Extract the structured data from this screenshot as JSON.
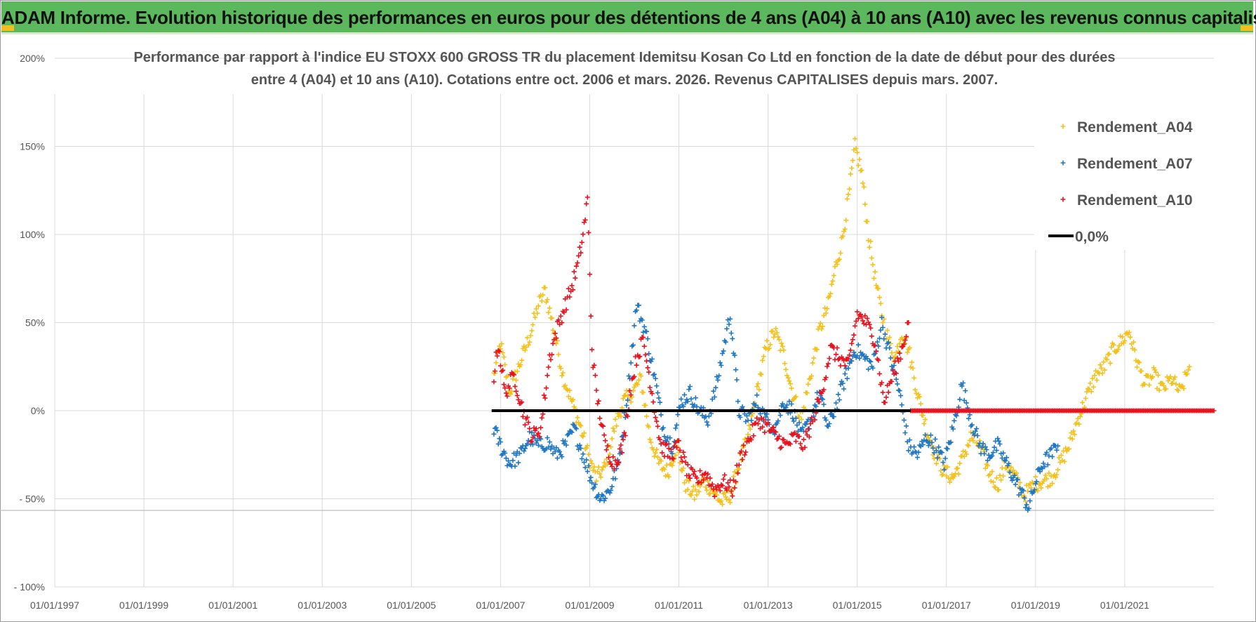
{
  "header": {
    "title": "ADAM Informe. Evolution historique des performances en euros pour des détentions de 4 ans (A04) à 10 ans (A10) avec les revenus connus capitalisés"
  },
  "colors": {
    "header_bg": "#5cb85c",
    "header_accent": "#f0c020",
    "a04": "#f5c01a",
    "a07": "#1f77c4",
    "a10": "#e8111c",
    "zero": "#000000",
    "grid": "#d9d9d9"
  },
  "chart_data": {
    "type": "scatter",
    "title_lines": [
      "Performance par rapport à l'indice EU STOXX 600 GROSS TR  du placement Idemitsu Kosan Co Ltd en fonction de la date de début pour des durées",
      "entre 4 (A04) et 10 ans (A10). Cotations entre oct. 2006 et mars. 2026. Revenus CAPITALISES depuis mars. 2007."
    ],
    "xlabel": "",
    "ylabel": "",
    "xlim": [
      1997.0,
      2023.0
    ],
    "ylim": [
      -100,
      200
    ],
    "x_ticks": [
      1997,
      1999,
      2001,
      2003,
      2005,
      2007,
      2009,
      2011,
      2013,
      2015,
      2017,
      2019,
      2021
    ],
    "x_tick_labels": [
      "01/01/1997",
      "01/01/1999",
      "01/01/2001",
      "01/01/2003",
      "01/01/2005",
      "01/01/2007",
      "01/01/2009",
      "01/01/2011",
      "01/01/2013",
      "01/01/2015",
      "01/01/2017",
      "01/01/2019",
      "01/01/2021"
    ],
    "y_ticks": [
      200,
      150,
      100,
      50,
      0,
      -50,
      -100
    ],
    "y_tick_labels": [
      "200%",
      "150%",
      "100%",
      "50%",
      "0%",
      "- 50%",
      "- 100%"
    ],
    "legend_position": "top-right",
    "legend": [
      "Rendement_A04",
      "Rendement_A07",
      "Rendement_A10",
      "0,0%"
    ],
    "zero_line": {
      "name": "0,0%",
      "x": [
        2006.8,
        2023.0
      ],
      "y": [
        0,
        0
      ]
    },
    "series": [
      {
        "name": "Rendement_A04",
        "color_key": "a04",
        "x": [
          2006.85,
          2007.0,
          2007.2,
          2007.45,
          2007.65,
          2007.85,
          2008.0,
          2008.2,
          2008.4,
          2008.6,
          2008.8,
          2009.0,
          2009.15,
          2009.35,
          2009.55,
          2009.75,
          2009.95,
          2010.15,
          2010.35,
          2010.55,
          2010.75,
          2010.95,
          2011.15,
          2011.35,
          2011.55,
          2011.75,
          2011.95,
          2012.15,
          2012.35,
          2012.55,
          2012.75,
          2012.95,
          2013.15,
          2013.35,
          2013.55,
          2013.75,
          2013.95,
          2014.15,
          2014.35,
          2014.5,
          2014.65,
          2014.8,
          2014.95,
          2015.1,
          2015.25,
          2015.4,
          2015.55,
          2015.7,
          2015.85,
          2016.0,
          2016.15,
          2016.35,
          2016.55,
          2016.75,
          2016.95,
          2017.15,
          2017.35,
          2017.55,
          2017.75,
          2017.95,
          2018.15,
          2018.35,
          2018.55,
          2018.75,
          2018.95,
          2019.15,
          2019.35,
          2019.55,
          2019.75,
          2019.95,
          2020.15,
          2020.35,
          2020.55,
          2020.75,
          2020.95,
          2021.1,
          2021.25,
          2021.45,
          2021.65,
          2021.85,
          2022.05,
          2022.25,
          2022.45
        ],
        "y": [
          20,
          38,
          10,
          28,
          42,
          60,
          68,
          45,
          20,
          5,
          -10,
          -28,
          -38,
          -32,
          -10,
          5,
          10,
          18,
          -15,
          -30,
          -35,
          -20,
          -42,
          -48,
          -40,
          -45,
          -52,
          -48,
          -30,
          -15,
          10,
          35,
          45,
          32,
          10,
          -5,
          20,
          45,
          60,
          80,
          95,
          120,
          150,
          135,
          100,
          75,
          55,
          40,
          30,
          45,
          35,
          10,
          -10,
          -25,
          -35,
          -38,
          -28,
          -15,
          -20,
          -35,
          -42,
          -30,
          -38,
          -48,
          -42,
          -40,
          -38,
          -30,
          -20,
          -5,
          8,
          20,
          25,
          35,
          40,
          45,
          30,
          15,
          20,
          12,
          18,
          10,
          25
        ]
      },
      {
        "name": "Rendement_A07",
        "color_key": "a07",
        "x": [
          2006.85,
          2007.0,
          2007.2,
          2007.45,
          2007.65,
          2007.85,
          2008.05,
          2008.25,
          2008.45,
          2008.65,
          2008.85,
          2009.05,
          2009.25,
          2009.45,
          2009.65,
          2009.85,
          2010.05,
          2010.25,
          2010.45,
          2010.65,
          2010.85,
          2011.05,
          2011.25,
          2011.45,
          2011.65,
          2011.85,
          2012.0,
          2012.15,
          2012.35,
          2012.55,
          2012.75,
          2012.95,
          2013.15,
          2013.35,
          2013.55,
          2013.75,
          2013.95,
          2014.15,
          2014.35,
          2014.55,
          2014.75,
          2014.95,
          2015.15,
          2015.35,
          2015.55,
          2015.75,
          2015.95,
          2016.15,
          2016.35,
          2016.55,
          2016.75,
          2016.95,
          2017.15,
          2017.35,
          2017.55,
          2017.75,
          2017.95,
          2018.15,
          2018.35,
          2018.55,
          2018.75,
          2018.85,
          2018.95,
          2019.15,
          2019.35,
          2019.5
        ],
        "y": [
          -10,
          -20,
          -30,
          -25,
          -15,
          -20,
          -18,
          -25,
          -20,
          -10,
          -25,
          -40,
          -50,
          -45,
          -30,
          10,
          60,
          45,
          20,
          -10,
          -20,
          5,
          10,
          0,
          -5,
          15,
          35,
          55,
          0,
          -5,
          5,
          -5,
          -10,
          5,
          0,
          -15,
          -5,
          10,
          -10,
          5,
          20,
          35,
          30,
          25,
          50,
          30,
          10,
          -20,
          -25,
          -15,
          -20,
          -30,
          -10,
          15,
          -5,
          -20,
          -25,
          -20,
          -30,
          -40,
          -50,
          -55,
          -45,
          -30,
          -25,
          -20
        ]
      },
      {
        "name": "Rendement_A10",
        "color_key": "a10",
        "x": [
          2006.85,
          2006.95,
          2007.1,
          2007.3,
          2007.5,
          2007.7,
          2007.9,
          2008.1,
          2008.25,
          2008.45,
          2008.6,
          2008.75,
          2008.85,
          2008.95,
          2009.05,
          2009.15,
          2009.35,
          2009.55,
          2009.75,
          2009.9,
          2010.05,
          2010.2,
          2010.4,
          2010.6,
          2010.8,
          2011.0,
          2011.2,
          2011.4,
          2011.6,
          2011.8,
          2012.0,
          2012.2,
          2012.4,
          2012.6,
          2012.8,
          2013.0,
          2013.2,
          2013.4,
          2013.6,
          2013.8,
          2014.0,
          2014.2,
          2014.4,
          2014.6,
          2014.8,
          2015.0,
          2015.2,
          2015.4,
          2015.6,
          2015.8,
          2016.0,
          2016.15
        ],
        "y": [
          20,
          38,
          10,
          20,
          0,
          -15,
          -10,
          30,
          45,
          60,
          70,
          85,
          100,
          120,
          35,
          10,
          -20,
          -30,
          -20,
          10,
          30,
          40,
          10,
          -20,
          -25,
          -20,
          -35,
          -40,
          -35,
          -45,
          -40,
          -45,
          -25,
          -15,
          -5,
          -10,
          -15,
          -20,
          -15,
          -20,
          -5,
          10,
          35,
          30,
          25,
          55,
          50,
          40,
          5,
          20,
          35,
          50
        ]
      },
      {
        "name": "Rendement_A10_flat",
        "color_key": "a10",
        "x": [
          2016.2,
          2023.0
        ],
        "y": [
          0,
          0
        ]
      }
    ]
  }
}
